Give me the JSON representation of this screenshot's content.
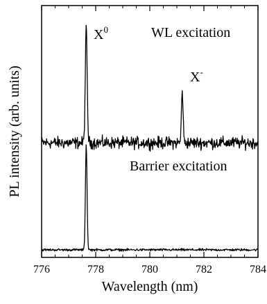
{
  "chart_data": {
    "type": "line",
    "xlabel": "Wavelength (nm)",
    "ylabel": "PL intensity (arb. units)",
    "xlim": [
      776,
      784
    ],
    "xticks": [
      776,
      778,
      780,
      782,
      784
    ],
    "x_minor_step": 0.5,
    "ylim": [
      0,
      1
    ],
    "y_ticks_labeled": false,
    "grid": false,
    "legend": "none",
    "line_color": "#000000",
    "series": [
      {
        "label": "WL excitation",
        "baseline": 0.455,
        "noise_amplitude": 0.035,
        "peaks": [
          {
            "label": "X",
            "label_sup": "0",
            "x": 777.65,
            "height": 0.45,
            "width_nm": 0.07
          },
          {
            "label": "X",
            "label_sup": "-",
            "x": 781.2,
            "height": 0.21,
            "width_nm": 0.06
          }
        ]
      },
      {
        "label": "Barrier excitation",
        "baseline": 0.03,
        "noise_amplitude": 0.007,
        "peaks": [
          {
            "x": 777.65,
            "height": 0.42,
            "width_nm": 0.06
          }
        ]
      }
    ]
  }
}
